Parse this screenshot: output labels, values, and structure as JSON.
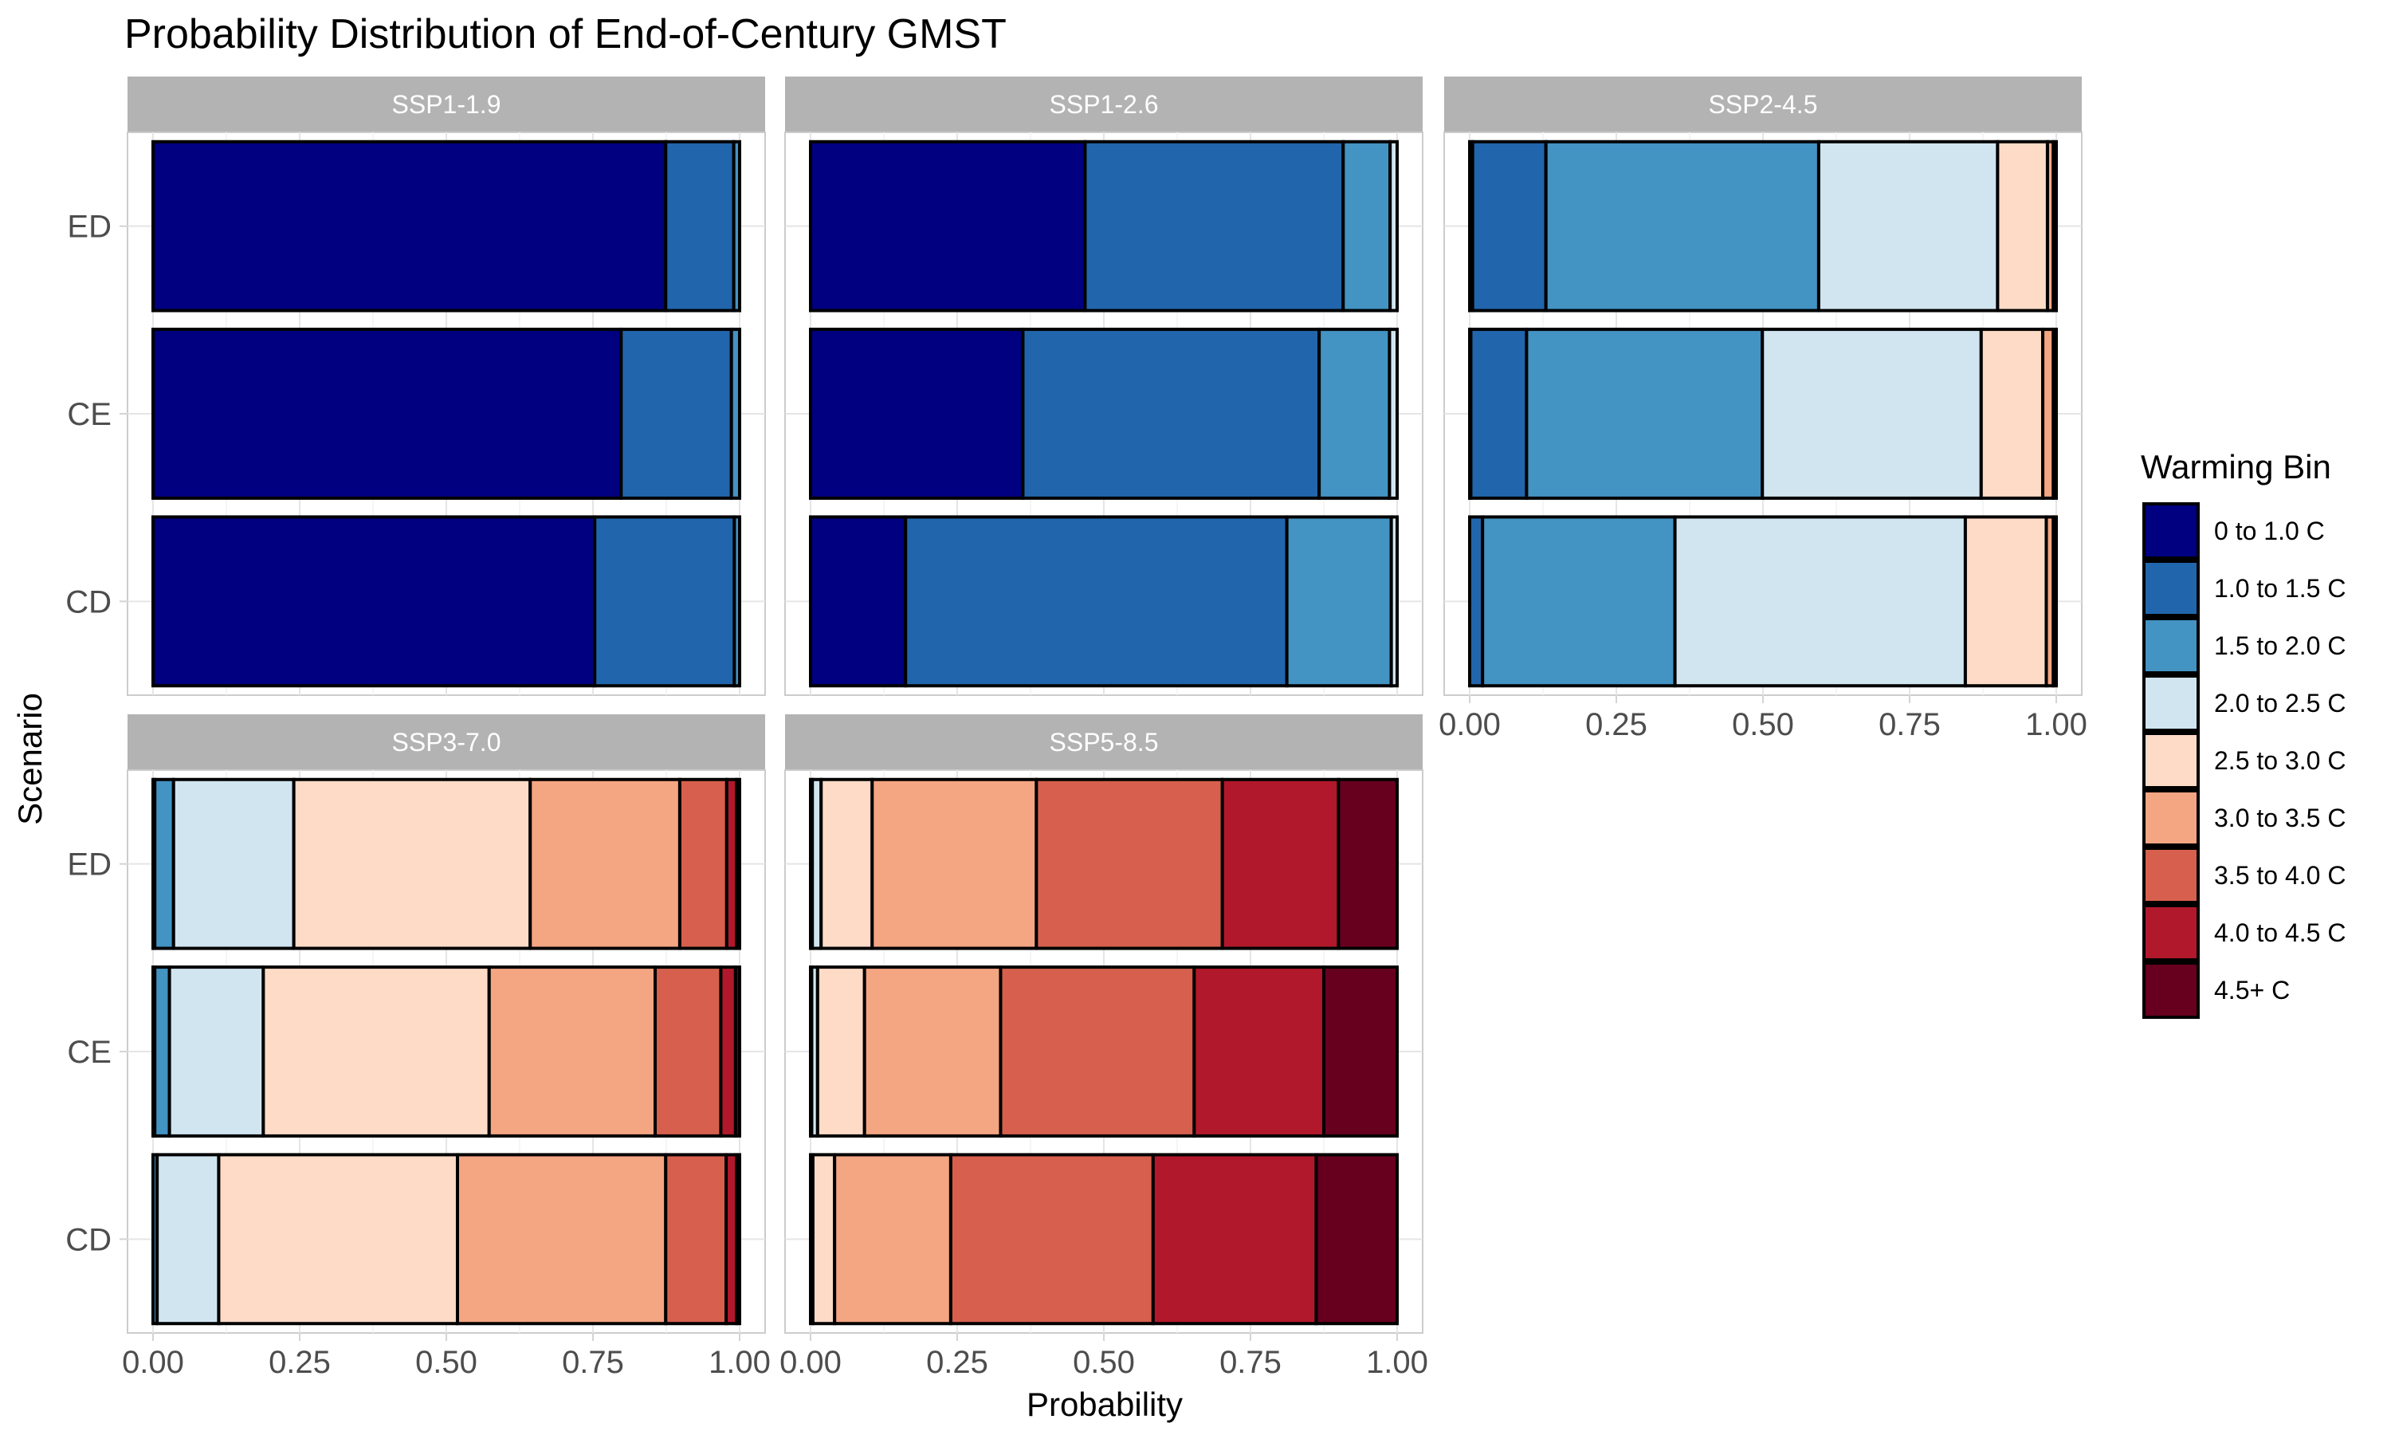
{
  "chart_data": {
    "type": "bar",
    "orientation": "horizontal",
    "stacked": true,
    "title": "Probability Distribution of End-of-Century GMST",
    "xlabel": "Probability",
    "ylabel": "Scenario",
    "xlim": [
      0,
      1
    ],
    "x_ticks": [
      "0.00",
      "0.25",
      "0.50",
      "0.75",
      "1.00"
    ],
    "categories": [
      "ED",
      "CE",
      "CD"
    ],
    "grid": true,
    "legend": {
      "title": "Warming Bin",
      "position": "right",
      "items": [
        {
          "label": "0 to 1.0 C",
          "color": "#000080"
        },
        {
          "label": "1.0 to 1.5 C",
          "color": "#2166ac"
        },
        {
          "label": "1.5 to 2.0 C",
          "color": "#4393c3"
        },
        {
          "label": "2.0 to 2.5 C",
          "color": "#d1e5f0"
        },
        {
          "label": "2.5 to 3.0 C",
          "color": "#fddbc7"
        },
        {
          "label": "3.0 to 3.5 C",
          "color": "#f4a582"
        },
        {
          "label": "3.5 to 4.0 C",
          "color": "#d6604d"
        },
        {
          "label": "4.0 to 4.5 C",
          "color": "#b2182b"
        },
        {
          "label": "4.5+ C",
          "color": "#67001f"
        }
      ]
    },
    "panels": [
      {
        "name": "SSP1-1.9",
        "bars": [
          {
            "scenario": "ED",
            "values": [
              0.874,
              0.116,
              0.01,
              0,
              0,
              0,
              0,
              0,
              0
            ]
          },
          {
            "scenario": "CE",
            "values": [
              0.798,
              0.188,
              0.014,
              0,
              0,
              0,
              0,
              0,
              0
            ]
          },
          {
            "scenario": "CD",
            "values": [
              0.753,
              0.238,
              0.009,
              0,
              0,
              0,
              0,
              0,
              0
            ]
          }
        ]
      },
      {
        "name": "SSP1-2.6",
        "bars": [
          {
            "scenario": "ED",
            "values": [
              0.468,
              0.44,
              0.08,
              0.012,
              0,
              0,
              0,
              0,
              0
            ]
          },
          {
            "scenario": "CE",
            "values": [
              0.362,
              0.505,
              0.12,
              0.013,
              0,
              0,
              0,
              0,
              0
            ]
          },
          {
            "scenario": "CD",
            "values": [
              0.162,
              0.65,
              0.178,
              0.01,
              0,
              0,
              0,
              0,
              0
            ]
          }
        ]
      },
      {
        "name": "SSP2-4.5",
        "bars": [
          {
            "scenario": "ED",
            "values": [
              0.005,
              0.125,
              0.465,
              0.305,
              0.085,
              0.01,
              0.005,
              0,
              0
            ]
          },
          {
            "scenario": "CE",
            "values": [
              0.002,
              0.095,
              0.402,
              0.373,
              0.105,
              0.018,
              0.005,
              0,
              0
            ]
          },
          {
            "scenario": "CD",
            "values": [
              0,
              0.022,
              0.328,
              0.495,
              0.138,
              0.012,
              0.005,
              0,
              0
            ]
          }
        ]
      },
      {
        "name": "SSP3-7.0",
        "bars": [
          {
            "scenario": "ED",
            "values": [
              0,
              0.003,
              0.032,
              0.205,
              0.403,
              0.255,
              0.08,
              0.017,
              0.005
            ]
          },
          {
            "scenario": "CE",
            "values": [
              0,
              0.003,
              0.025,
              0.16,
              0.385,
              0.283,
              0.112,
              0.025,
              0.007
            ]
          },
          {
            "scenario": "CD",
            "values": [
              0,
              0,
              0.007,
              0.105,
              0.407,
              0.355,
              0.103,
              0.018,
              0.005
            ]
          }
        ]
      },
      {
        "name": "SSP5-8.5",
        "bars": [
          {
            "scenario": "ED",
            "values": [
              0,
              0,
              0.003,
              0.015,
              0.087,
              0.28,
              0.317,
              0.198,
              0.1
            ]
          },
          {
            "scenario": "CE",
            "values": [
              0,
              0,
              0.002,
              0.01,
              0.08,
              0.232,
              0.33,
              0.221,
              0.125
            ]
          },
          {
            "scenario": "CD",
            "values": [
              0,
              0,
              0,
              0.004,
              0.037,
              0.198,
              0.345,
              0.278,
              0.138
            ]
          }
        ]
      }
    ]
  }
}
